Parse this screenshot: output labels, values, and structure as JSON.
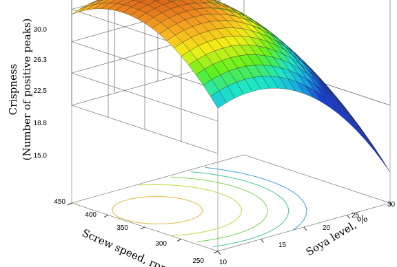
{
  "chart_data": {
    "type": "surface",
    "zlabel_line1": "Crispness",
    "zlabel_line2": "(Number of positive peaks)",
    "xlabel": "Soya level, %",
    "ylabel": "Screw speed, rpm",
    "z_ticks": [
      "15.0",
      "18.8",
      "22.5",
      "26.3",
      "30.0"
    ],
    "x_ticks": [
      "10",
      "15",
      "20",
      "25",
      "30"
    ],
    "y_ticks": [
      "250",
      "300",
      "350",
      "400",
      "450"
    ],
    "x_range": [
      10,
      30
    ],
    "y_range": [
      250,
      450
    ],
    "z_range": [
      15,
      30
    ],
    "contour_levels": [
      20,
      22,
      24,
      26,
      28
    ],
    "grid": true,
    "surface_colormap": [
      "#1c3fd0",
      "#18a6e6",
      "#1ee6c8",
      "#5ff01e",
      "#f2f016",
      "#f6a522",
      "#d95b18"
    ]
  }
}
